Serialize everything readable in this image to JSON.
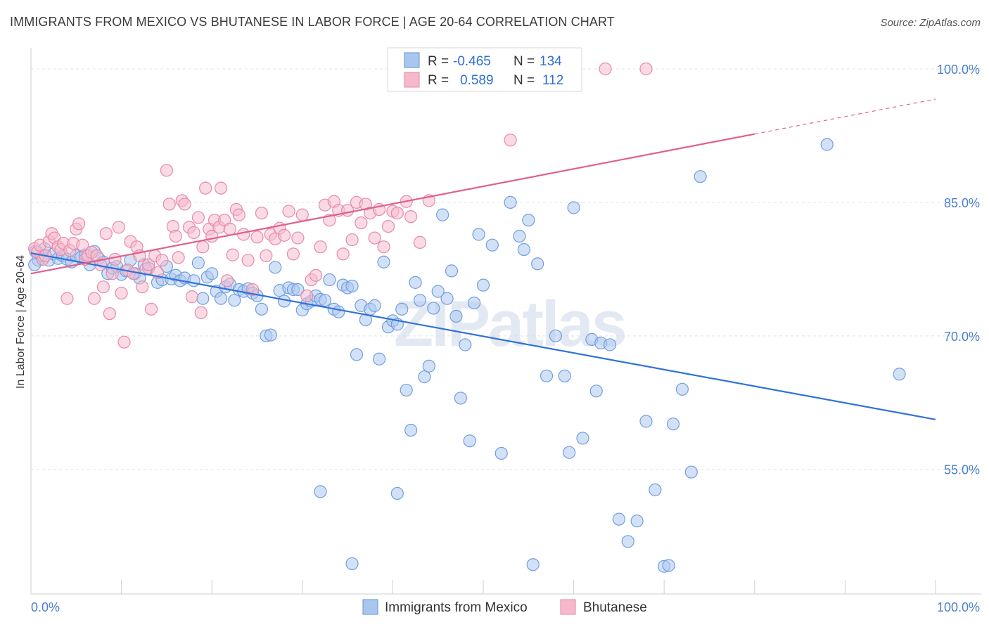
{
  "header": {
    "title": "IMMIGRANTS FROM MEXICO VS BHUTANESE IN LABOR FORCE | AGE 20-64 CORRELATION CHART",
    "source": "Source: ZipAtlas.com"
  },
  "watermark": "ZIPatlas",
  "legend": {
    "r_label": "R =",
    "n_label": "N =",
    "rows": [
      {
        "r": "-0.465",
        "n": "134",
        "color": "#a9c6ef",
        "border": "#5f93da"
      },
      {
        "r": "0.589",
        "n": "112",
        "color": "#f7b8cb",
        "border": "#e588a6"
      }
    ]
  },
  "bottom_legend": [
    {
      "label": "Immigrants from Mexico",
      "color": "#a9c6ef",
      "border": "#5f93da"
    },
    {
      "label": "Bhutanese",
      "color": "#f7b8cb",
      "border": "#e588a6"
    }
  ],
  "chart_data": {
    "type": "scatter",
    "ylabel": "In Labor Force | Age 20-64",
    "xlim": [
      0,
      100
    ],
    "ylim": [
      41,
      103
    ],
    "y_ticks": [
      {
        "value": 100,
        "label": "100.0%"
      },
      {
        "value": 85,
        "label": "85.0%"
      },
      {
        "value": 70,
        "label": "70.0%"
      },
      {
        "value": 55,
        "label": "55.0%"
      }
    ],
    "x_tick_labels": [
      {
        "value": 0,
        "label": "0.0%"
      },
      {
        "value": 100,
        "label": "100.0%"
      }
    ],
    "grid": "horizontal-dashed",
    "series": [
      {
        "name": "Immigrants from Mexico",
        "color": "#6f9fe0",
        "fill": "#aec9f0",
        "trend": {
          "x0": 0,
          "y0": 79.3,
          "x1": 100,
          "y1": 60.6,
          "color": "#2f73d6",
          "dashed_from": null
        },
        "points": [
          [
            0.5,
            79.5
          ],
          [
            0.8,
            78.5
          ],
          [
            1.2,
            79.0
          ],
          [
            1.5,
            79.8
          ],
          [
            2.0,
            78.5
          ],
          [
            2.5,
            79.2
          ],
          [
            3.0,
            78.7
          ],
          [
            3.5,
            79.0
          ],
          [
            4.0,
            78.6
          ],
          [
            4.5,
            78.3
          ],
          [
            5.0,
            79.0
          ],
          [
            5.5,
            78.8
          ],
          [
            6.0,
            79.1
          ],
          [
            6.5,
            78.0
          ],
          [
            7.0,
            79.5
          ],
          [
            7.5,
            78.7
          ],
          [
            8.0,
            78.3
          ],
          [
            8.5,
            77.0
          ],
          [
            9.0,
            77.6
          ],
          [
            9.5,
            77.8
          ],
          [
            10.0,
            76.9
          ],
          [
            10.5,
            77.3
          ],
          [
            11.0,
            78.5
          ],
          [
            11.5,
            77.0
          ],
          [
            12.0,
            76.5
          ],
          [
            12.5,
            78.0
          ],
          [
            13.0,
            77.6
          ],
          [
            14.0,
            76.0
          ],
          [
            14.5,
            76.3
          ],
          [
            15.0,
            77.8
          ],
          [
            15.5,
            76.4
          ],
          [
            16.0,
            76.8
          ],
          [
            16.5,
            76.2
          ],
          [
            17.0,
            76.5
          ],
          [
            18.0,
            76.2
          ],
          [
            18.5,
            78.2
          ],
          [
            19.0,
            74.2
          ],
          [
            19.5,
            76.6
          ],
          [
            20.0,
            77.0
          ],
          [
            20.5,
            75.0
          ],
          [
            21.0,
            74.2
          ],
          [
            21.5,
            75.5
          ],
          [
            22.0,
            75.8
          ],
          [
            22.5,
            74.0
          ],
          [
            23.0,
            75.2
          ],
          [
            23.5,
            75.0
          ],
          [
            24.0,
            75.3
          ],
          [
            24.5,
            74.8
          ],
          [
            25.0,
            74.5
          ],
          [
            25.5,
            73.0
          ],
          [
            26.0,
            70.0
          ],
          [
            26.5,
            70.1
          ],
          [
            27.0,
            77.7
          ],
          [
            27.5,
            75.1
          ],
          [
            28.0,
            73.9
          ],
          [
            28.5,
            75.4
          ],
          [
            29.0,
            75.2
          ],
          [
            29.5,
            75.2
          ],
          [
            30.0,
            72.9
          ],
          [
            30.5,
            73.6
          ],
          [
            31.0,
            73.9
          ],
          [
            31.5,
            74.5
          ],
          [
            32.0,
            74.1
          ],
          [
            32.5,
            74.0
          ],
          [
            33.0,
            76.3
          ],
          [
            33.5,
            73.0
          ],
          [
            34.0,
            72.7
          ],
          [
            34.5,
            75.7
          ],
          [
            35.0,
            75.4
          ],
          [
            35.5,
            75.6
          ],
          [
            36.0,
            67.9
          ],
          [
            36.5,
            73.4
          ],
          [
            37.0,
            71.8
          ],
          [
            37.5,
            73.0
          ],
          [
            38.0,
            73.4
          ],
          [
            38.5,
            67.4
          ],
          [
            39.0,
            78.3
          ],
          [
            39.5,
            71.0
          ],
          [
            40.0,
            71.7
          ],
          [
            40.5,
            71.3
          ],
          [
            41.0,
            73.0
          ],
          [
            41.5,
            63.9
          ],
          [
            42.0,
            59.4
          ],
          [
            42.5,
            76.0
          ],
          [
            43.0,
            74.0
          ],
          [
            43.5,
            65.4
          ],
          [
            44.0,
            66.6
          ],
          [
            44.5,
            73.1
          ],
          [
            45.0,
            75.0
          ],
          [
            45.5,
            83.6
          ],
          [
            46.0,
            74.2
          ],
          [
            46.5,
            77.3
          ],
          [
            47.0,
            72.2
          ],
          [
            47.5,
            63.0
          ],
          [
            48.0,
            69.0
          ],
          [
            48.5,
            58.2
          ],
          [
            49.0,
            73.7
          ],
          [
            49.5,
            81.4
          ],
          [
            50.0,
            75.7
          ],
          [
            51.0,
            80.2
          ],
          [
            52.0,
            56.8
          ],
          [
            53.0,
            85.0
          ],
          [
            54.0,
            81.2
          ],
          [
            54.5,
            79.7
          ],
          [
            55.0,
            83.0
          ],
          [
            56.0,
            78.1
          ],
          [
            57.0,
            65.5
          ],
          [
            58.0,
            70.0
          ],
          [
            59.0,
            65.5
          ],
          [
            59.5,
            56.9
          ],
          [
            60.0,
            84.4
          ],
          [
            61.0,
            58.5
          ],
          [
            62.0,
            69.6
          ],
          [
            62.5,
            63.8
          ],
          [
            63.0,
            69.2
          ],
          [
            64.0,
            69.0
          ],
          [
            65.0,
            49.4
          ],
          [
            66.0,
            46.9
          ],
          [
            67.0,
            49.2
          ],
          [
            68.0,
            60.4
          ],
          [
            69.0,
            52.7
          ],
          [
            70.0,
            44.1
          ],
          [
            71.0,
            60.1
          ],
          [
            72.0,
            64.0
          ],
          [
            73.0,
            54.7
          ],
          [
            74.0,
            87.9
          ],
          [
            32.0,
            52.5
          ],
          [
            35.5,
            44.4
          ],
          [
            40.5,
            52.3
          ],
          [
            55.5,
            44.3
          ],
          [
            70.5,
            44.2
          ],
          [
            88.0,
            91.5
          ],
          [
            96.0,
            65.7
          ],
          [
            0.4,
            78.0
          ]
        ]
      },
      {
        "name": "Bhutanese",
        "color": "#e78aa8",
        "fill": "#f6bccd",
        "trend": {
          "x0": 0,
          "y0": 77.0,
          "x1": 100,
          "y1": 96.6,
          "color": "#e0608b",
          "dashed_from": 80
        },
        "points": [
          [
            0.4,
            79.8
          ],
          [
            0.7,
            79.4
          ],
          [
            1.0,
            80.2
          ],
          [
            1.3,
            78.6
          ],
          [
            1.6,
            79.0
          ],
          [
            2.0,
            80.6
          ],
          [
            2.3,
            81.5
          ],
          [
            2.6,
            81.0
          ],
          [
            3.0,
            80.0
          ],
          [
            3.3,
            79.7
          ],
          [
            3.6,
            80.4
          ],
          [
            4.0,
            74.2
          ],
          [
            4.3,
            79.6
          ],
          [
            4.7,
            80.4
          ],
          [
            5.0,
            82.0
          ],
          [
            5.3,
            82.6
          ],
          [
            5.7,
            80.2
          ],
          [
            6.0,
            78.6
          ],
          [
            6.3,
            79.0
          ],
          [
            6.7,
            79.4
          ],
          [
            7.0,
            74.2
          ],
          [
            7.3,
            79.0
          ],
          [
            7.7,
            78.0
          ],
          [
            8.0,
            75.5
          ],
          [
            8.3,
            81.5
          ],
          [
            8.7,
            72.5
          ],
          [
            9.0,
            77.0
          ],
          [
            9.3,
            78.6
          ],
          [
            9.7,
            82.2
          ],
          [
            10.0,
            74.8
          ],
          [
            10.3,
            69.3
          ],
          [
            10.7,
            77.4
          ],
          [
            11.0,
            80.6
          ],
          [
            11.3,
            77.0
          ],
          [
            11.7,
            80.0
          ],
          [
            12.0,
            79.0
          ],
          [
            12.3,
            75.5
          ],
          [
            12.7,
            77.5
          ],
          [
            13.0,
            78.0
          ],
          [
            13.3,
            73.0
          ],
          [
            13.7,
            79.0
          ],
          [
            14.0,
            77.1
          ],
          [
            14.5,
            78.5
          ],
          [
            15.0,
            88.6
          ],
          [
            15.3,
            84.8
          ],
          [
            15.7,
            82.3
          ],
          [
            16.0,
            81.2
          ],
          [
            16.3,
            78.8
          ],
          [
            16.7,
            85.2
          ],
          [
            17.0,
            84.8
          ],
          [
            17.5,
            82.2
          ],
          [
            17.8,
            74.4
          ],
          [
            18.0,
            81.6
          ],
          [
            18.5,
            83.3
          ],
          [
            18.8,
            72.6
          ],
          [
            19.0,
            80.0
          ],
          [
            19.3,
            86.6
          ],
          [
            19.7,
            82.0
          ],
          [
            20.0,
            81.2
          ],
          [
            20.3,
            83.0
          ],
          [
            20.8,
            82.2
          ],
          [
            21.0,
            86.6
          ],
          [
            21.4,
            83.0
          ],
          [
            21.7,
            76.2
          ],
          [
            22.0,
            82.0
          ],
          [
            22.3,
            79.1
          ],
          [
            22.7,
            84.2
          ],
          [
            23.0,
            83.6
          ],
          [
            23.5,
            81.4
          ],
          [
            24.0,
            78.5
          ],
          [
            24.5,
            75.2
          ],
          [
            25.0,
            81.1
          ],
          [
            25.5,
            83.8
          ],
          [
            26.0,
            79.0
          ],
          [
            26.5,
            81.4
          ],
          [
            27.0,
            80.9
          ],
          [
            27.5,
            82.1
          ],
          [
            28.0,
            81.3
          ],
          [
            28.5,
            84.0
          ],
          [
            29.0,
            79.2
          ],
          [
            29.5,
            81.0
          ],
          [
            30.0,
            83.6
          ],
          [
            30.5,
            74.5
          ],
          [
            31.0,
            76.3
          ],
          [
            31.5,
            76.8
          ],
          [
            32.0,
            80.0
          ],
          [
            32.5,
            84.7
          ],
          [
            33.0,
            83.0
          ],
          [
            33.5,
            85.1
          ],
          [
            34.0,
            84.1
          ],
          [
            34.5,
            79.2
          ],
          [
            35.0,
            84.1
          ],
          [
            35.5,
            80.8
          ],
          [
            36.0,
            85.0
          ],
          [
            36.5,
            82.7
          ],
          [
            37.0,
            84.8
          ],
          [
            37.5,
            83.8
          ],
          [
            38.0,
            81.0
          ],
          [
            38.5,
            84.2
          ],
          [
            39.0,
            80.0
          ],
          [
            39.5,
            82.3
          ],
          [
            40.0,
            84.0
          ],
          [
            40.5,
            83.8
          ],
          [
            41.5,
            85.1
          ],
          [
            42.0,
            83.4
          ],
          [
            43.0,
            80.5
          ],
          [
            44.0,
            85.2
          ],
          [
            53.0,
            92.0
          ],
          [
            56.5,
            99.0
          ],
          [
            59.0,
            100.0
          ],
          [
            63.5,
            100.0
          ],
          [
            68.0,
            100.0
          ]
        ]
      }
    ]
  }
}
